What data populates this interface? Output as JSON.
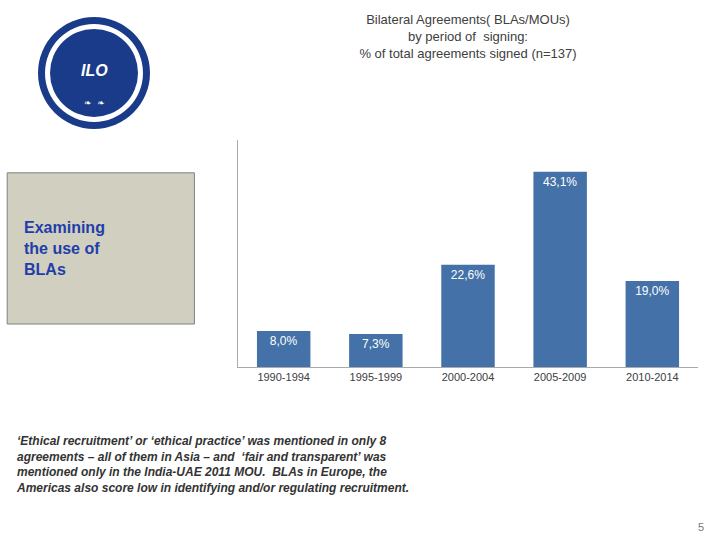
{
  "chart_data": {
    "type": "bar",
    "title": "Bilateral Agreements( BLAs/MOUs)\nby period of  signing:\n% of total agreements signed (n=137)",
    "categories": [
      "1990-1994",
      "1995-1999",
      "2000-2004",
      "2005-2009",
      "2010-2014"
    ],
    "values": [
      8.0,
      7.3,
      22.6,
      43.1,
      19.0
    ],
    "value_labels": [
      "8,0%",
      "7,3%",
      "22,6%",
      "43,1%",
      "19,0%"
    ],
    "color": "#4472A8",
    "ylim": [
      0,
      50
    ],
    "grid": false,
    "tick_labels": "x",
    "data_labels": true,
    "annotations": [
      "ILO",
      "❧  ❧",
      "Examining\nthe use of\nBLAs",
      "‘Ethical recruitment’ or ‘ethical practice’ was mentioned in only 8\nagreements – all of them in Asia – and  ‘fair and transparent’ was\nmentioned only in the India-UAE 2011 MOU.  BLAs in Europe, the\nAmericas also score low in identifying and/or regulating recruitment.",
      "5"
    ]
  }
}
